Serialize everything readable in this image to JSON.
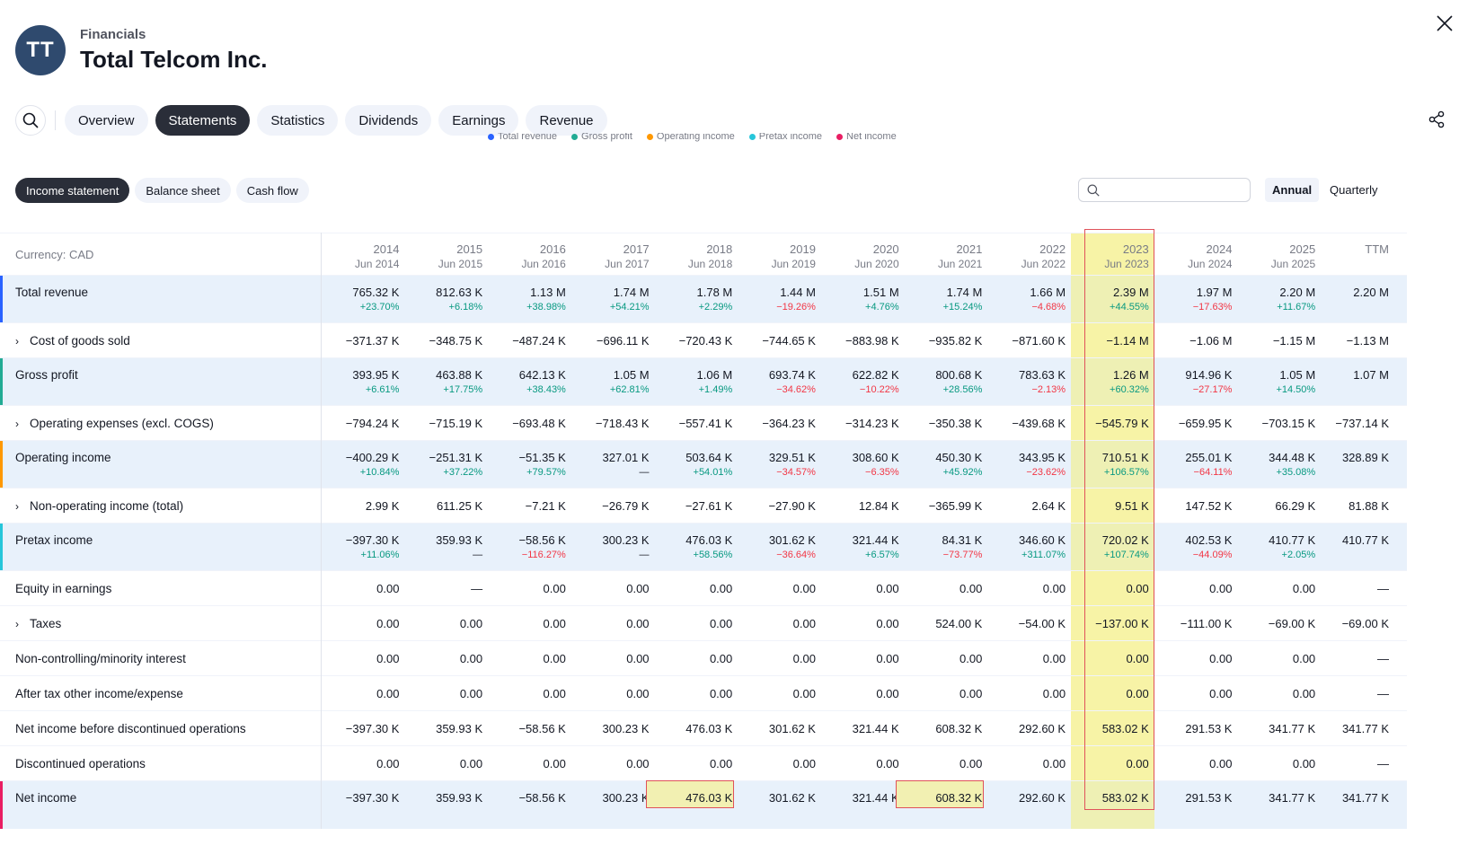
{
  "header": {
    "logo_text": "TT",
    "subtitle": "Financials",
    "title": "Total Telcom Inc."
  },
  "nav": {
    "tabs": [
      "Overview",
      "Statements",
      "Statistics",
      "Dividends",
      "Earnings",
      "Revenue"
    ],
    "active": "Statements"
  },
  "legend": [
    {
      "label": "Total revenue",
      "color": "#2962ff"
    },
    {
      "label": "Gross profit",
      "color": "#22ab94"
    },
    {
      "label": "Operating income",
      "color": "#ff9800"
    },
    {
      "label": "Pretax income",
      "color": "#26c6da"
    },
    {
      "label": "Net income",
      "color": "#e91e63"
    }
  ],
  "subtabs": [
    "Income statement",
    "Balance sheet",
    "Cash flow"
  ],
  "search": {
    "placeholder": ""
  },
  "period": {
    "annual": "Annual",
    "quarterly": "Quarterly"
  },
  "table": {
    "currency": "Currency: CAD",
    "columns": [
      {
        "year": "2014",
        "month": "Jun 2014"
      },
      {
        "year": "2015",
        "month": "Jun 2015"
      },
      {
        "year": "2016",
        "month": "Jun 2016"
      },
      {
        "year": "2017",
        "month": "Jun 2017"
      },
      {
        "year": "2018",
        "month": "Jun 2018"
      },
      {
        "year": "2019",
        "month": "Jun 2019"
      },
      {
        "year": "2020",
        "month": "Jun 2020"
      },
      {
        "year": "2021",
        "month": "Jun 2021"
      },
      {
        "year": "2022",
        "month": "Jun 2022"
      },
      {
        "year": "2023",
        "month": "Jun 2023"
      },
      {
        "year": "2024",
        "month": "Jun 2024"
      },
      {
        "year": "2025",
        "month": "Jun 2025"
      },
      {
        "year": "TTM",
        "month": ""
      }
    ],
    "highlight_col": 9,
    "rows": [
      {
        "label": "Total revenue",
        "main": true,
        "bar": "#2962ff",
        "values": [
          "765.32 K",
          "812.63 K",
          "1.13 M",
          "1.74 M",
          "1.78 M",
          "1.44 M",
          "1.51 M",
          "1.74 M",
          "1.66 M",
          "2.39 M",
          "1.97 M",
          "2.20 M",
          "2.20 M"
        ],
        "changes": [
          "+23.70%",
          "+6.18%",
          "+38.98%",
          "+54.21%",
          "+2.29%",
          "−19.26%",
          "+4.76%",
          "+15.24%",
          "−4.68%",
          "+44.55%",
          "−17.63%",
          "+11.67%",
          ""
        ]
      },
      {
        "label": "Cost of goods sold",
        "expand": true,
        "values": [
          "−371.37 K",
          "−348.75 K",
          "−487.24 K",
          "−696.11 K",
          "−720.43 K",
          "−744.65 K",
          "−883.98 K",
          "−935.82 K",
          "−871.60 K",
          "−1.14 M",
          "−1.06 M",
          "−1.15 M",
          "−1.13 M"
        ]
      },
      {
        "label": "Gross profit",
        "main": true,
        "bar": "#22ab94",
        "values": [
          "393.95 K",
          "463.88 K",
          "642.13 K",
          "1.05 M",
          "1.06 M",
          "693.74 K",
          "622.82 K",
          "800.68 K",
          "783.63 K",
          "1.26 M",
          "914.96 K",
          "1.05 M",
          "1.07 M"
        ],
        "changes": [
          "+6.61%",
          "+17.75%",
          "+38.43%",
          "+62.81%",
          "+1.49%",
          "−34.62%",
          "−10.22%",
          "+28.56%",
          "−2.13%",
          "+60.32%",
          "−27.17%",
          "+14.50%",
          ""
        ]
      },
      {
        "label": "Operating expenses (excl. COGS)",
        "expand": true,
        "values": [
          "−794.24 K",
          "−715.19 K",
          "−693.48 K",
          "−718.43 K",
          "−557.41 K",
          "−364.23 K",
          "−314.23 K",
          "−350.38 K",
          "−439.68 K",
          "−545.79 K",
          "−659.95 K",
          "−703.15 K",
          "−737.14 K"
        ]
      },
      {
        "label": "Operating income",
        "main": true,
        "bar": "#ff9800",
        "values": [
          "−400.29 K",
          "−251.31 K",
          "−51.35 K",
          "327.01 K",
          "503.64 K",
          "329.51 K",
          "308.60 K",
          "450.30 K",
          "343.95 K",
          "710.51 K",
          "255.01 K",
          "344.48 K",
          "328.89 K"
        ],
        "changes": [
          "+10.84%",
          "+37.22%",
          "+79.57%",
          "—",
          "+54.01%",
          "−34.57%",
          "−6.35%",
          "+45.92%",
          "−23.62%",
          "+106.57%",
          "−64.11%",
          "+35.08%",
          ""
        ]
      },
      {
        "label": "Non-operating income (total)",
        "expand": true,
        "values": [
          "2.99 K",
          "611.25 K",
          "−7.21 K",
          "−26.79 K",
          "−27.61 K",
          "−27.90 K",
          "12.84 K",
          "−365.99 K",
          "2.64 K",
          "9.51 K",
          "147.52 K",
          "66.29 K",
          "81.88 K"
        ]
      },
      {
        "label": "Pretax income",
        "main": true,
        "bar": "#26c6da",
        "values": [
          "−397.30 K",
          "359.93 K",
          "−58.56 K",
          "300.23 K",
          "476.03 K",
          "301.62 K",
          "321.44 K",
          "84.31 K",
          "346.60 K",
          "720.02 K",
          "402.53 K",
          "410.77 K",
          "410.77 K"
        ],
        "changes": [
          "+11.06%",
          "—",
          "−116.27%",
          "—",
          "+58.56%",
          "−36.64%",
          "+6.57%",
          "−73.77%",
          "+311.07%",
          "+107.74%",
          "−44.09%",
          "+2.05%",
          ""
        ]
      },
      {
        "label": "Equity in earnings",
        "values": [
          "0.00",
          "—",
          "0.00",
          "0.00",
          "0.00",
          "0.00",
          "0.00",
          "0.00",
          "0.00",
          "0.00",
          "0.00",
          "0.00",
          "—"
        ]
      },
      {
        "label": "Taxes",
        "expand": true,
        "values": [
          "0.00",
          "0.00",
          "0.00",
          "0.00",
          "0.00",
          "0.00",
          "0.00",
          "524.00 K",
          "−54.00 K",
          "−137.00 K",
          "−111.00 K",
          "−69.00 K",
          "−69.00 K"
        ]
      },
      {
        "label": "Non-controlling/minority interest",
        "values": [
          "0.00",
          "0.00",
          "0.00",
          "0.00",
          "0.00",
          "0.00",
          "0.00",
          "0.00",
          "0.00",
          "0.00",
          "0.00",
          "0.00",
          "—"
        ]
      },
      {
        "label": "After tax other income/expense",
        "values": [
          "0.00",
          "0.00",
          "0.00",
          "0.00",
          "0.00",
          "0.00",
          "0.00",
          "0.00",
          "0.00",
          "0.00",
          "0.00",
          "0.00",
          "—"
        ]
      },
      {
        "label": "Net income before discontinued operations",
        "values": [
          "−397.30 K",
          "359.93 K",
          "−58.56 K",
          "300.23 K",
          "476.03 K",
          "301.62 K",
          "321.44 K",
          "608.32 K",
          "292.60 K",
          "583.02 K",
          "291.53 K",
          "341.77 K",
          "341.77 K"
        ]
      },
      {
        "label": "Discontinued operations",
        "values": [
          "0.00",
          "0.00",
          "0.00",
          "0.00",
          "0.00",
          "0.00",
          "0.00",
          "0.00",
          "0.00",
          "0.00",
          "0.00",
          "0.00",
          "—"
        ]
      },
      {
        "label": "Net income",
        "main": true,
        "bar": "#e91e63",
        "values": [
          "−397.30 K",
          "359.93 K",
          "−58.56 K",
          "300.23 K",
          "476.03 K",
          "301.62 K",
          "321.44 K",
          "608.32 K",
          "292.60 K",
          "583.02 K",
          "291.53 K",
          "341.77 K",
          "341.77 K"
        ],
        "changes": [
          "",
          "",
          "",
          "",
          "",
          "",
          "",
          "",
          "",
          "",
          "",
          "",
          ""
        ]
      }
    ],
    "highlight_cells": [
      {
        "row": 13,
        "col": 4
      },
      {
        "row": 13,
        "col": 7
      }
    ]
  }
}
